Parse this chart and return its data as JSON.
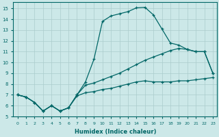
{
  "xlabel": "Humidex (Indice chaleur)",
  "bg_color": "#cce8e8",
  "grid_color": "#aacccc",
  "line_color": "#006666",
  "xlim": [
    -0.5,
    23.5
  ],
  "ylim": [
    5,
    15.6
  ],
  "yticks": [
    5,
    6,
    7,
    8,
    9,
    10,
    11,
    12,
    13,
    14,
    15
  ],
  "xticks": [
    0,
    1,
    2,
    3,
    4,
    5,
    6,
    7,
    8,
    9,
    10,
    11,
    12,
    13,
    14,
    15,
    16,
    17,
    18,
    19,
    20,
    21,
    22,
    23
  ],
  "line_top_x": [
    0,
    1,
    2,
    3,
    4,
    5,
    6,
    7,
    8,
    9,
    10,
    11,
    12,
    13,
    14,
    15,
    16,
    17,
    18,
    19,
    20,
    21,
    22,
    23
  ],
  "line_top_y": [
    7.0,
    6.8,
    6.3,
    5.5,
    6.0,
    5.5,
    5.8,
    7.0,
    8.2,
    10.3,
    13.8,
    14.3,
    14.5,
    14.7,
    15.05,
    15.1,
    14.4,
    13.1,
    11.8,
    11.6,
    11.2,
    11.0,
    11.0,
    9.0
  ],
  "line_mid_x": [
    0,
    1,
    2,
    3,
    4,
    5,
    6,
    7,
    8,
    9,
    10,
    11,
    12,
    13,
    14,
    15,
    16,
    17,
    18,
    19,
    20,
    21,
    22,
    23
  ],
  "line_mid_y": [
    7.0,
    6.8,
    6.3,
    5.5,
    6.0,
    5.5,
    5.8,
    7.0,
    7.9,
    8.1,
    8.4,
    8.7,
    9.0,
    9.4,
    9.8,
    10.2,
    10.5,
    10.8,
    11.1,
    11.3,
    11.2,
    11.0,
    11.0,
    9.0
  ],
  "line_bot_x": [
    0,
    1,
    2,
    3,
    4,
    5,
    6,
    7,
    8,
    9,
    10,
    11,
    12,
    13,
    14,
    15,
    16,
    17,
    18,
    19,
    20,
    21,
    22,
    23
  ],
  "line_bot_y": [
    7.0,
    6.8,
    6.3,
    5.5,
    6.0,
    5.5,
    5.8,
    6.9,
    7.2,
    7.3,
    7.5,
    7.6,
    7.8,
    8.0,
    8.2,
    8.3,
    8.2,
    8.2,
    8.2,
    8.3,
    8.3,
    8.4,
    8.5,
    8.6
  ]
}
